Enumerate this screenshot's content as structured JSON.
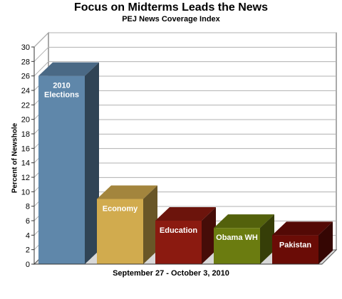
{
  "chart_data": {
    "type": "bar",
    "title": "Focus on Midterms Leads the News",
    "subtitle": "PEJ News Coverage Index",
    "ylabel": "Percent of Newshole",
    "xlabel": "September 27 - October 3, 2010",
    "ylim": [
      0,
      30
    ],
    "yticks": [
      0,
      2,
      4,
      6,
      8,
      10,
      12,
      14,
      16,
      18,
      20,
      22,
      24,
      26,
      28,
      30
    ],
    "grid": true,
    "categories": [
      "2010\nElections",
      "Economy",
      "Education",
      "Obama WH",
      "Pakistan"
    ],
    "values": [
      26,
      9,
      6,
      5,
      4
    ],
    "colors": [
      "#5f87aa",
      "#d1ab4e",
      "#8b1a10",
      "#6b7c10",
      "#6a0c06"
    ]
  }
}
